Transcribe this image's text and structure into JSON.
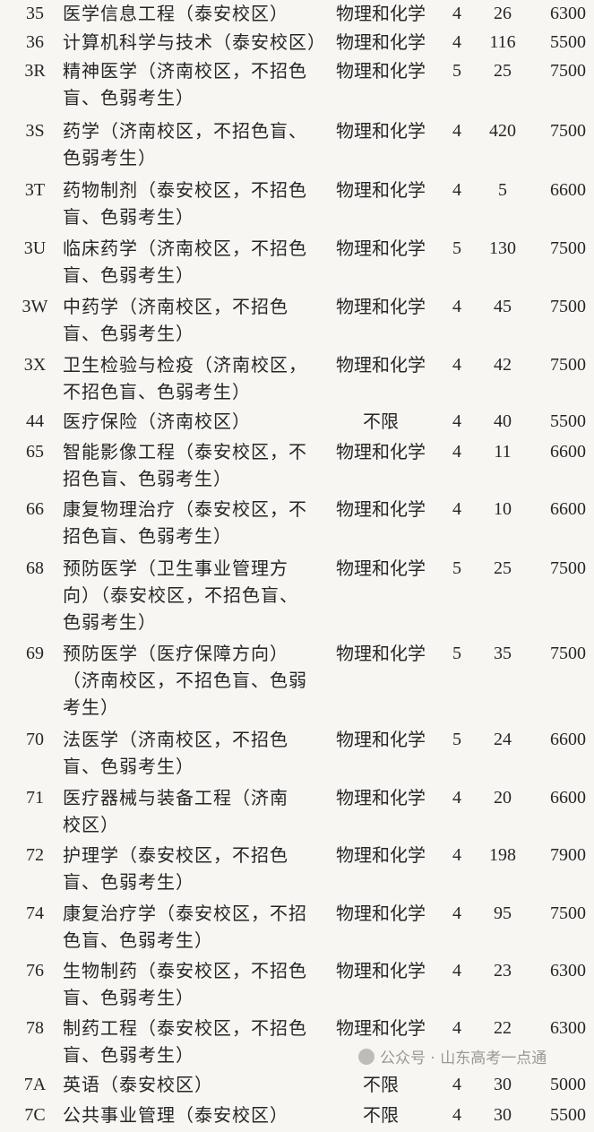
{
  "rows": [
    {
      "code": "35",
      "name": [
        "医学信息工程（泰安校区）"
      ],
      "subject": "物理和化学",
      "years": "4",
      "count": "26",
      "fee": "6300"
    },
    {
      "code": "36",
      "name": [
        "计算机科学与技术（泰安校区）"
      ],
      "subject": "物理和化学",
      "years": "4",
      "count": "116",
      "fee": "5500"
    },
    {
      "code": "3R",
      "name": [
        "精神医学（济南校区，不招色",
        "盲、色弱考生）"
      ],
      "subject": "物理和化学",
      "years": "5",
      "count": "25",
      "fee": "7500"
    },
    {
      "code": "3S",
      "name": [
        "药学（济南校区，不招色盲、",
        "色弱考生）"
      ],
      "subject": "物理和化学",
      "years": "4",
      "count": "420",
      "fee": "7500"
    },
    {
      "code": "3T",
      "name": [
        "药物制剂（泰安校区，不招色",
        "盲、色弱考生）"
      ],
      "subject": "物理和化学",
      "years": "4",
      "count": "5",
      "fee": "6600"
    },
    {
      "code": "3U",
      "name": [
        "临床药学（济南校区，不招色",
        "盲、色弱考生）"
      ],
      "subject": "物理和化学",
      "years": "5",
      "count": "130",
      "fee": "7500"
    },
    {
      "code": "3W",
      "name": [
        "中药学（济南校区，不招色",
        "盲、色弱考生）"
      ],
      "subject": "物理和化学",
      "years": "4",
      "count": "45",
      "fee": "7500"
    },
    {
      "code": "3X",
      "name": [
        "卫生检验与检疫（济南校区，",
        "不招色盲、色弱考生）"
      ],
      "subject": "物理和化学",
      "years": "4",
      "count": "42",
      "fee": "7500"
    },
    {
      "code": "44",
      "name": [
        "医疗保险（济南校区）"
      ],
      "subject": "不限",
      "years": "4",
      "count": "40",
      "fee": "5500"
    },
    {
      "code": "65",
      "name": [
        "智能影像工程（泰安校区，不",
        "招色盲、色弱考生）"
      ],
      "subject": "物理和化学",
      "years": "4",
      "count": "11",
      "fee": "6600"
    },
    {
      "code": "66",
      "name": [
        "康复物理治疗（泰安校区，不",
        "招色盲、色弱考生）"
      ],
      "subject": "物理和化学",
      "years": "4",
      "count": "10",
      "fee": "6600"
    },
    {
      "code": "68",
      "name": [
        "预防医学（卫生事业管理方",
        "向）（泰安校区，不招色盲、",
        "色弱考生）"
      ],
      "subject": "物理和化学",
      "years": "5",
      "count": "25",
      "fee": "7500"
    },
    {
      "code": "69",
      "name": [
        "预防医学（医疗保障方向）",
        "（济南校区，不招色盲、色弱",
        "考生）"
      ],
      "subject": "物理和化学",
      "years": "5",
      "count": "35",
      "fee": "7500"
    },
    {
      "code": "70",
      "name": [
        "法医学（济南校区，不招色",
        "盲、色弱考生）"
      ],
      "subject": "物理和化学",
      "years": "5",
      "count": "24",
      "fee": "6600"
    },
    {
      "code": "71",
      "name": [
        "医疗器械与装备工程（济南",
        "校区）"
      ],
      "subject": "物理和化学",
      "years": "4",
      "count": "20",
      "fee": "6600"
    },
    {
      "code": "72",
      "name": [
        "护理学（泰安校区，不招色",
        "盲、色弱考生）"
      ],
      "subject": "物理和化学",
      "years": "4",
      "count": "198",
      "fee": "7900"
    },
    {
      "code": "74",
      "name": [
        "康复治疗学（泰安校区，不招",
        "色盲、色弱考生）"
      ],
      "subject": "物理和化学",
      "years": "4",
      "count": "95",
      "fee": "7500"
    },
    {
      "code": "76",
      "name": [
        "生物制药（泰安校区，不招色",
        "盲、色弱考生）"
      ],
      "subject": "物理和化学",
      "years": "4",
      "count": "23",
      "fee": "6300"
    },
    {
      "code": "78",
      "name": [
        "制药工程（泰安校区，不招色",
        "盲、色弱考生）"
      ],
      "subject": "物理和化学",
      "years": "4",
      "count": "22",
      "fee": "6300"
    },
    {
      "code": "7A",
      "name": [
        "英语（泰安校区）"
      ],
      "subject": "不限",
      "years": "4",
      "count": "30",
      "fee": "5000"
    },
    {
      "code": "7C",
      "name": [
        "公共事业管理（泰安校区）"
      ],
      "subject": "不限",
      "years": "4",
      "count": "30",
      "fee": "5500"
    }
  ],
  "watermark": {
    "text": "公众号 · 山东高考一点通",
    "icon": "wechat-icon"
  }
}
